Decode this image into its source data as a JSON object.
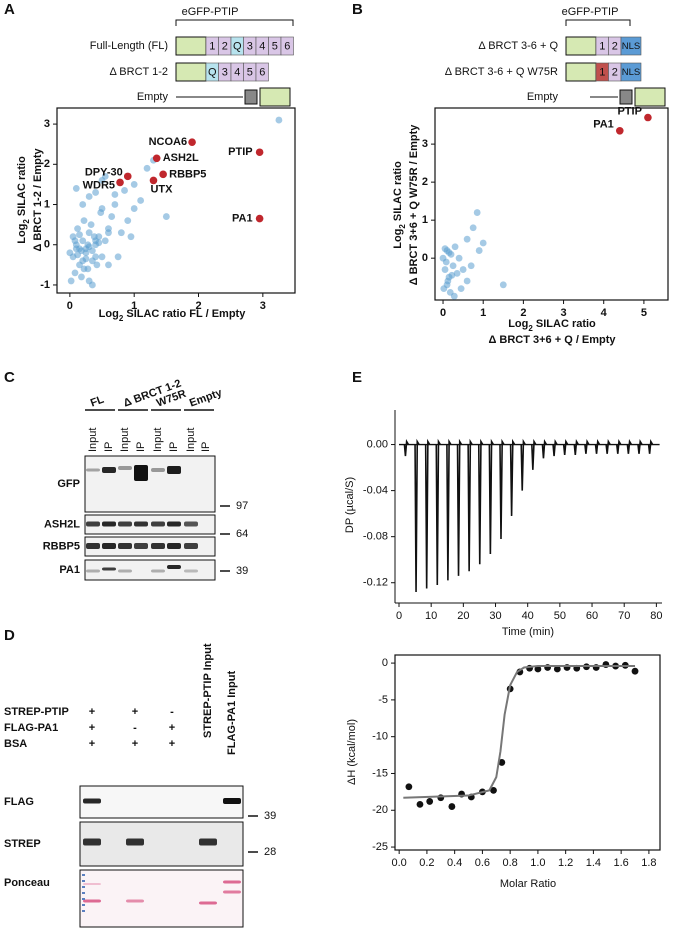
{
  "panels": {
    "A": {
      "label": "A",
      "header": "eGFP-PTIP",
      "constructs": [
        {
          "name": "Full-Length (FL)",
          "domains": [
            "1",
            "2",
            "Q",
            "3",
            "4",
            "5",
            "6"
          ],
          "colors": [
            "#d9c6e6",
            "#d9c6e6",
            "#b7e3ee",
            "#d9c6e6",
            "#d9c6e6",
            "#d9c6e6",
            "#d9c6e6"
          ]
        },
        {
          "name": "Δ BRCT 1-2",
          "domains": [
            "Q",
            "3",
            "4",
            "5",
            "6"
          ],
          "colors": [
            "#b7e3ee",
            "#d9c6e6",
            "#d9c6e6",
            "#d9c6e6",
            "#d9c6e6"
          ]
        },
        {
          "name": "Empty"
        }
      ],
      "chart": {
        "type": "scatter",
        "x_label": [
          "Log",
          "2",
          " SILAC ratio FL / Empty"
        ],
        "y_label": [
          "Log",
          "2",
          " SILAC ratio"
        ],
        "y_label_2": "Δ BRCT 1-2 / Empty",
        "xlim": [
          -0.2,
          3.5
        ],
        "xticks": [
          0,
          1,
          2,
          3
        ],
        "ylim": [
          -1.2,
          3.4
        ],
        "yticks": [
          -1,
          0,
          1,
          2,
          3
        ],
        "series": [
          {
            "color": "#5b9fd0",
            "points": [
              [
                0.05,
                -0.3
              ],
              [
                0.1,
                -0.1
              ],
              [
                0.15,
                -0.5
              ],
              [
                0.2,
                0.1
              ],
              [
                0.25,
                -0.2
              ],
              [
                0.3,
                0.3
              ],
              [
                0.35,
                -0.4
              ],
              [
                0.4,
                0.0
              ],
              [
                0.45,
                0.2
              ],
              [
                0.5,
                -0.3
              ],
              [
                0.08,
                -0.7
              ],
              [
                0.12,
                0.4
              ],
              [
                0.18,
                -0.8
              ],
              [
                0.22,
                0.6
              ],
              [
                0.28,
                -0.6
              ],
              [
                0.33,
                0.5
              ],
              [
                0.38,
                0.2
              ],
              [
                0.42,
                -0.5
              ],
              [
                0.48,
                0.8
              ],
              [
                0.55,
                0.1
              ],
              [
                0.6,
                0.4
              ],
              [
                0.65,
                0.7
              ],
              [
                0.7,
                1.0
              ],
              [
                0.02,
                -0.9
              ],
              [
                0.0,
                -0.2
              ],
              [
                0.1,
                1.4
              ],
              [
                0.2,
                1.0
              ],
              [
                0.3,
                1.2
              ],
              [
                0.4,
                1.3
              ],
              [
                0.5,
                0.9
              ],
              [
                0.6,
                0.3
              ],
              [
                0.15,
                -0.1
              ],
              [
                0.25,
                -0.35
              ],
              [
                0.35,
                -0.15
              ],
              [
                0.45,
                0.05
              ],
              [
                0.05,
                0.2
              ],
              [
                0.9,
                0.6
              ],
              [
                1.0,
                1.5
              ],
              [
                1.1,
                1.1
              ],
              [
                0.8,
                0.3
              ],
              [
                0.75,
                -0.3
              ],
              [
                1.2,
                1.9
              ],
              [
                0.6,
                -0.5
              ],
              [
                0.55,
                1.7
              ],
              [
                0.35,
                -1.0
              ],
              [
                0.3,
                -0.9
              ],
              [
                0.25,
                -0.1
              ],
              [
                1.0,
                0.9
              ],
              [
                0.85,
                1.35
              ],
              [
                0.7,
                1.25
              ],
              [
                0.5,
                1.6
              ],
              [
                0.4,
                0.1
              ],
              [
                3.25,
                3.1
              ],
              [
                1.3,
                2.1
              ],
              [
                0.1,
                0.0
              ],
              [
                0.2,
                -0.4
              ],
              [
                0.12,
                -0.25
              ],
              [
                0.18,
                -0.15
              ],
              [
                0.3,
                -0.05
              ],
              [
                0.08,
                0.1
              ],
              [
                0.22,
                -0.6
              ],
              [
                0.28,
                0.0
              ],
              [
                0.4,
                -0.3
              ],
              [
                0.15,
                0.25
              ],
              [
                1.5,
                0.7
              ],
              [
                0.95,
                0.2
              ]
            ]
          },
          {
            "color": "#c0272d",
            "points": [
              [
                1.9,
                2.55
              ],
              [
                1.35,
                2.15
              ],
              [
                2.95,
                2.3
              ],
              [
                0.9,
                1.7
              ],
              [
                0.78,
                1.55
              ],
              [
                1.45,
                1.75
              ],
              [
                1.3,
                1.6
              ],
              [
                2.95,
                0.65
              ]
            ],
            "labels": [
              "NCOA6",
              "ASH2L",
              "PTIP",
              "DPY-30",
              "WDR5",
              "RBBP5",
              "UTX",
              "PA1"
            ]
          }
        ]
      }
    },
    "B": {
      "label": "B",
      "header": "eGFP-PTIP",
      "constructs": [
        {
          "name": "Δ BRCT 3-6 + Q",
          "domains": [
            "1",
            "2",
            "NLS"
          ],
          "colors": [
            "#d9c6e6",
            "#d9c6e6",
            "#5b9bd5"
          ]
        },
        {
          "name": "Δ BRCT 3-6 + Q W75R",
          "domains": [
            "1",
            "2",
            "NLS"
          ],
          "colors": [
            "#c0504d",
            "#d9c6e6",
            "#5b9bd5"
          ]
        },
        {
          "name": "Empty"
        }
      ],
      "chart": {
        "type": "scatter",
        "x_label": [
          "Log",
          "2",
          " SILAC ratio"
        ],
        "x_label_2": "Δ BRCT 3+6 + Q / Empty",
        "y_label": [
          "Log",
          "2",
          " SILAC ratio"
        ],
        "y_label_2": "Δ BRCT 3+6 + Q W75R / Empty",
        "xlim": [
          -0.2,
          5.6
        ],
        "xticks": [
          0,
          1,
          2,
          3,
          4,
          5
        ],
        "ylim": [
          -1.1,
          3.95
        ],
        "yticks": [
          0,
          1,
          2,
          3
        ],
        "series": [
          {
            "color": "#5b9fd0",
            "points": [
              [
                0,
                0
              ],
              [
                0.05,
                -0.3
              ],
              [
                0.1,
                0.2
              ],
              [
                0.15,
                -0.5
              ],
              [
                0.02,
                -0.8
              ],
              [
                0.2,
                0.1
              ],
              [
                0.08,
                -0.1
              ],
              [
                0.12,
                -0.6
              ],
              [
                0.25,
                -0.2
              ],
              [
                0.3,
                0.3
              ],
              [
                0.18,
                -0.9
              ],
              [
                0.35,
                -0.4
              ],
              [
                0.4,
                0
              ],
              [
                0.5,
                -0.3
              ],
              [
                0.6,
                0.5
              ],
              [
                0.7,
                -0.2
              ],
              [
                0.85,
                1.2
              ],
              [
                0.9,
                0.2
              ],
              [
                0.6,
                -0.6
              ],
              [
                1.0,
                0.4
              ],
              [
                1.5,
                -0.7
              ],
              [
                0.45,
                -0.8
              ],
              [
                0.05,
                0.25
              ],
              [
                0.22,
                -0.45
              ],
              [
                0.28,
                -1.0
              ],
              [
                0.1,
                -0.7
              ],
              [
                0.75,
                0.8
              ],
              [
                0.15,
                0.15
              ]
            ]
          },
          {
            "color": "#c0272d",
            "points": [
              [
                5.1,
                3.7
              ],
              [
                4.4,
                3.35
              ]
            ],
            "labels": [
              "PTIP",
              "PA1"
            ]
          }
        ]
      }
    },
    "C": {
      "label": "C",
      "groups": [
        "FL",
        "Δ BRCT 1-2",
        "W75R",
        "Empty"
      ],
      "lanes": [
        "Input",
        "IP"
      ],
      "rows": [
        "GFP",
        "ASH2L",
        "RBBP5",
        "PA1"
      ],
      "markers": [
        97,
        64,
        39
      ]
    },
    "D": {
      "label": "D",
      "conditions": [
        {
          "name": "STREP-PTIP",
          "signs": [
            "+",
            "+",
            "-"
          ]
        },
        {
          "name": "FLAG-PA1",
          "signs": [
            "+",
            "-",
            "+"
          ]
        },
        {
          "name": "BSA",
          "signs": [
            "+",
            "+",
            "+"
          ]
        }
      ],
      "input_labels": [
        "STREP-PTIP Input",
        "FLAG-PA1 Input"
      ],
      "rows": [
        "FLAG",
        "STREP",
        "Ponceau"
      ],
      "markers": [
        39,
        28
      ]
    },
    "E": {
      "label": "E",
      "chart_top": {
        "type": "injections",
        "x_label": "Time (min)",
        "y_label": "DP (µcal/S)",
        "color": "#111",
        "xlim": [
          0,
          81
        ],
        "xticks": [
          0,
          10,
          20,
          30,
          40,
          50,
          60,
          70,
          80
        ],
        "ylim": [
          -0.135,
          0.03
        ],
        "yticks": [
          {
            "value": 0,
            "label": "0.00"
          },
          -0.04,
          -0.08,
          -0.12
        ],
        "x": [
          2,
          5.3,
          8.6,
          11.9,
          15.2,
          18.5,
          21.8,
          25.1,
          28.4,
          31.7,
          35,
          38.3,
          41.6,
          44.9,
          48.2,
          51.5,
          54.8,
          58.1,
          61.4,
          64.7,
          68,
          71.3,
          74.6,
          77.9
        ],
        "values": [
          -0.01,
          -0.128,
          -0.125,
          -0.122,
          -0.118,
          -0.114,
          -0.11,
          -0.104,
          -0.095,
          -0.082,
          -0.062,
          -0.04,
          -0.022,
          -0.012,
          -0.01,
          -0.009,
          -0.009,
          -0.008,
          -0.008,
          -0.008,
          -0.008,
          -0.008,
          -0.008,
          -0.008
        ]
      },
      "chart_bottom": {
        "type": "scatter",
        "x_label": "Molar Ratio",
        "y_label": "ΔH (kcal/mol)",
        "color": "#111",
        "fit_color": "#777",
        "xlim": [
          -0.03,
          1.88
        ],
        "xticks": [
          {
            "value": 0,
            "label": "0.0"
          },
          0.2,
          0.4,
          0.6,
          0.8,
          {
            "value": 1,
            "label": "1.0"
          },
          1.2,
          1.4,
          1.6,
          1.8
        ],
        "ylim": [
          -25.4,
          1.1
        ],
        "yticks": [
          0,
          -5,
          -10,
          -15,
          -20,
          -25
        ],
        "points": [
          [
            0.07,
            -16.8
          ],
          [
            0.15,
            -19.2
          ],
          [
            0.22,
            -18.8
          ],
          [
            0.3,
            -18.3
          ],
          [
            0.38,
            -19.5
          ],
          [
            0.45,
            -17.8
          ],
          [
            0.52,
            -18.2
          ],
          [
            0.6,
            -17.5
          ],
          [
            0.68,
            -17.3
          ],
          [
            0.74,
            -13.5
          ],
          [
            0.8,
            -3.5
          ],
          [
            0.87,
            -1.2
          ],
          [
            0.94,
            -0.7
          ],
          [
            1.0,
            -0.8
          ],
          [
            1.07,
            -0.6
          ],
          [
            1.14,
            -0.8
          ],
          [
            1.21,
            -0.6
          ],
          [
            1.28,
            -0.7
          ],
          [
            1.35,
            -0.5
          ],
          [
            1.42,
            -0.6
          ],
          [
            1.49,
            -0.2
          ],
          [
            1.56,
            -0.4
          ],
          [
            1.63,
            -0.3
          ],
          [
            1.7,
            -1.1
          ]
        ],
        "fit": {
          "x": [
            0.03,
            0.5,
            0.65,
            0.7,
            0.73,
            0.76,
            0.8,
            0.85,
            0.9,
            1.0,
            1.7
          ],
          "y": [
            -18.3,
            -18.0,
            -17.3,
            -15.5,
            -12,
            -7,
            -3,
            -1.2,
            -0.6,
            -0.4,
            -0.4
          ]
        }
      }
    }
  }
}
